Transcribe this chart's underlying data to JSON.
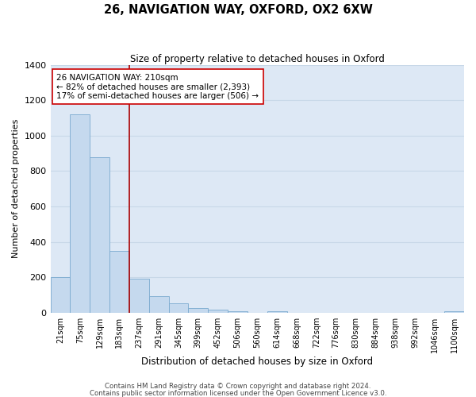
{
  "title": "26, NAVIGATION WAY, OXFORD, OX2 6XW",
  "subtitle": "Size of property relative to detached houses in Oxford",
  "xlabel": "Distribution of detached houses by size in Oxford",
  "ylabel": "Number of detached properties",
  "bar_labels": [
    "21sqm",
    "75sqm",
    "129sqm",
    "183sqm",
    "237sqm",
    "291sqm",
    "345sqm",
    "399sqm",
    "452sqm",
    "506sqm",
    "560sqm",
    "614sqm",
    "668sqm",
    "722sqm",
    "776sqm",
    "830sqm",
    "884sqm",
    "938sqm",
    "992sqm",
    "1046sqm",
    "1100sqm"
  ],
  "bar_values": [
    200,
    1120,
    880,
    350,
    190,
    95,
    55,
    25,
    15,
    10,
    0,
    10,
    0,
    0,
    0,
    0,
    0,
    0,
    0,
    0,
    10
  ],
  "bar_color": "#c5d9ee",
  "bar_edge_color": "#7aaacf",
  "grid_color": "#c8d8e8",
  "background_color": "#dde8f5",
  "vline_x": 3.5,
  "vline_color": "#aa0000",
  "annotation_text": "26 NAVIGATION WAY: 210sqm\n← 82% of detached houses are smaller (2,393)\n17% of semi-detached houses are larger (506) →",
  "annotation_box_color": "#ffffff",
  "annotation_box_edge": "#cc0000",
  "ylim": [
    0,
    1400
  ],
  "yticks": [
    0,
    200,
    400,
    600,
    800,
    1000,
    1200,
    1400
  ],
  "footer_line1": "Contains HM Land Registry data © Crown copyright and database right 2024.",
  "footer_line2": "Contains public sector information licensed under the Open Government Licence v3.0."
}
